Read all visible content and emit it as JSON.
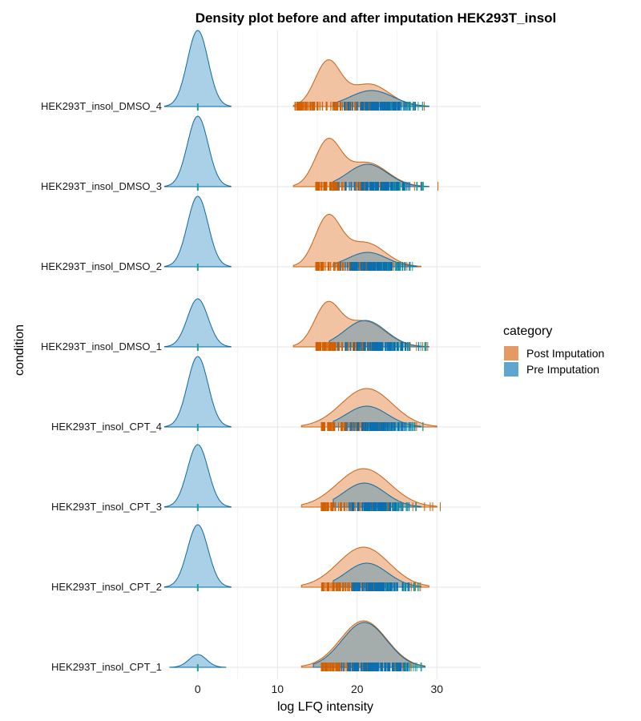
{
  "chart_data": {
    "type": "area",
    "subtype": "ridgeline-density",
    "title": "Density plot before and after imputation HEK293T_insol",
    "xlabel": "log LFQ intensity",
    "ylabel": "condition",
    "xlim": [
      -3.5,
      35.5
    ],
    "x_ticks": [
      0,
      10,
      20,
      30
    ],
    "x_tick_labels": [
      "0",
      "10",
      "20",
      "30"
    ],
    "grid": true,
    "legend": {
      "title": "category",
      "placement": "right",
      "entries": [
        {
          "label": "Post Imputation",
          "color": "#e69a63"
        },
        {
          "label": "Pre Imputation",
          "color": "#5ea6cf"
        }
      ]
    },
    "colors": {
      "post_fill": "#eeb892",
      "post_line": "#c8600f",
      "pre_fill": "#4a90b8",
      "pre_line": "#0b6aa3",
      "zero_fill": "#a9d0e6",
      "rug_post": "#d35f00",
      "rug_pre": "#0a6fb1",
      "rug_zero": "#1a9e9a"
    },
    "conditions": [
      {
        "name": "HEK293T_insol_DMSO_4",
        "zero_peak": {
          "center": 0,
          "sd": 1.3,
          "height": 0.95
        },
        "post": [
          {
            "c": 16.3,
            "s": 1.6,
            "h": 0.55
          },
          {
            "c": 21.5,
            "s": 2.5,
            "h": 0.28
          }
        ],
        "post_range": [
          12,
          29
        ],
        "pre": [
          {
            "c": 21.8,
            "s": 2.7,
            "h": 0.2
          }
        ],
        "pre_range": [
          17,
          29
        ],
        "rug_post_range": [
          12.2,
          29.2
        ],
        "rug_pre_range": [
          17.0,
          28.8
        ]
      },
      {
        "name": "HEK293T_insol_DMSO_3",
        "zero_peak": {
          "center": 0,
          "sd": 1.3,
          "height": 0.88
        },
        "post": [
          {
            "c": 16.3,
            "s": 1.6,
            "h": 0.55
          },
          {
            "c": 21.2,
            "s": 2.6,
            "h": 0.3
          }
        ],
        "post_range": [
          12,
          29
        ],
        "pre": [
          {
            "c": 21.3,
            "s": 2.5,
            "h": 0.28
          }
        ],
        "pre_range": [
          17,
          29
        ],
        "rug_post_range": [
          14.8,
          30.5
        ],
        "rug_pre_range": [
          17.0,
          28.5
        ]
      },
      {
        "name": "HEK293T_insol_DMSO_2",
        "zero_peak": {
          "center": 0,
          "sd": 1.3,
          "height": 0.88
        },
        "post": [
          {
            "c": 16.3,
            "s": 1.6,
            "h": 0.6
          },
          {
            "c": 21.0,
            "s": 2.5,
            "h": 0.3
          }
        ],
        "post_range": [
          12,
          28
        ],
        "pre": [
          {
            "c": 21.3,
            "s": 2.4,
            "h": 0.18
          }
        ],
        "pre_range": [
          17,
          27.5
        ],
        "rug_post_range": [
          14.8,
          27.0
        ],
        "rug_pre_range": [
          17.0,
          27.2
        ]
      },
      {
        "name": "HEK293T_insol_DMSO_1",
        "zero_peak": {
          "center": 0,
          "sd": 1.3,
          "height": 0.6
        },
        "post": [
          {
            "c": 16.2,
            "s": 1.6,
            "h": 0.5
          },
          {
            "c": 20.9,
            "s": 2.6,
            "h": 0.32
          }
        ],
        "post_range": [
          12,
          29
        ],
        "pre": [
          {
            "c": 21.0,
            "s": 2.6,
            "h": 0.33
          }
        ],
        "pre_range": [
          16.5,
          29
        ],
        "rug_post_range": [
          14.8,
          29.0
        ],
        "rug_pre_range": [
          16.8,
          28.8
        ]
      },
      {
        "name": "HEK293T_insol_CPT_4",
        "zero_peak": {
          "center": 0,
          "sd": 1.3,
          "height": 0.88
        },
        "post": [
          {
            "c": 21.2,
            "s": 3.2,
            "h": 0.48
          }
        ],
        "post_range": [
          13,
          30
        ],
        "pre": [
          {
            "c": 21.2,
            "s": 2.6,
            "h": 0.26
          }
        ],
        "pre_range": [
          17,
          28
        ],
        "rug_post_range": [
          15.5,
          29.7
        ],
        "rug_pre_range": [
          17.0,
          28.5
        ]
      },
      {
        "name": "HEK293T_insol_CPT_3",
        "zero_peak": {
          "center": 0,
          "sd": 1.3,
          "height": 0.78
        },
        "post": [
          {
            "c": 20.8,
            "s": 3.3,
            "h": 0.48
          }
        ],
        "post_range": [
          13,
          30
        ],
        "pre": [
          {
            "c": 20.9,
            "s": 2.6,
            "h": 0.3
          }
        ],
        "pre_range": [
          17,
          28
        ],
        "rug_post_range": [
          15.5,
          31.2
        ],
        "rug_pre_range": [
          17.0,
          27.8
        ]
      },
      {
        "name": "HEK293T_insol_CPT_2",
        "zero_peak": {
          "center": 0,
          "sd": 1.3,
          "height": 0.78
        },
        "post": [
          {
            "c": 20.8,
            "s": 3.2,
            "h": 0.5
          }
        ],
        "post_range": [
          13,
          29
        ],
        "pre": [
          {
            "c": 21.2,
            "s": 2.6,
            "h": 0.3
          }
        ],
        "pre_range": [
          17,
          28
        ],
        "rug_post_range": [
          15.5,
          28.5
        ],
        "rug_pre_range": [
          17.0,
          28.0
        ]
      },
      {
        "name": "HEK293T_insol_CPT_1",
        "zero_peak": {
          "center": 0,
          "sd": 1.1,
          "height": 0.16
        },
        "post": [
          {
            "c": 20.8,
            "s": 2.9,
            "h": 0.58
          }
        ],
        "post_range": [
          13,
          28.5
        ],
        "pre": [
          {
            "c": 20.9,
            "s": 2.8,
            "h": 0.56
          }
        ],
        "pre_range": [
          14.5,
          28.5
        ],
        "rug_post_range": [
          15.5,
          27.5
        ],
        "rug_pre_range": [
          16.5,
          28.2
        ]
      }
    ]
  }
}
